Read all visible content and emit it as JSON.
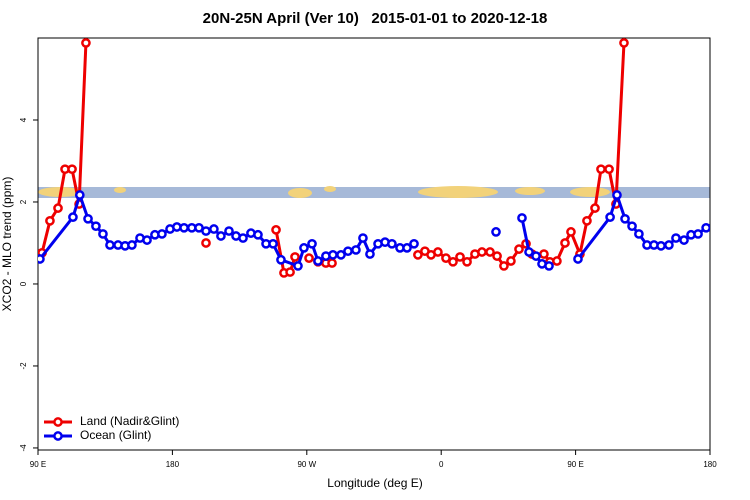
{
  "chart_data": {
    "type": "line",
    "title": "20N-25N April (Ver 10)   2015-01-01 to 2020-12-18",
    "x_label": "Longitude (deg E)",
    "y_label": "XCO2 - MLO trend (ppm)",
    "xlim": [
      90,
      540
    ],
    "xticks": [
      {
        "value": 90,
        "label": "90 E"
      },
      {
        "value": 180,
        "label": "180"
      },
      {
        "value": 270,
        "label": "90 W"
      },
      {
        "value": 360,
        "label": "0"
      },
      {
        "value": 450,
        "label": "90 E"
      },
      {
        "value": 540,
        "label": "180"
      }
    ],
    "ylim": [
      -4.05,
      6.0
    ],
    "yticks": [
      -4,
      -2,
      0,
      2,
      4
    ],
    "legend": "bottom-left",
    "series": [
      {
        "name": "Land (Nadir&Glint)",
        "color": "#ee0000",
        "x": [
          92.7,
          98,
          103.4,
          108.1,
          112.8,
          117.5,
          122.1,
          null,
          202.5,
          null,
          249.4,
          254.7,
          258.8,
          262.1,
          null,
          271.5,
          null,
          277.5,
          282.8,
          286.9,
          null,
          344.4,
          349.1,
          353.2,
          357.8,
          363.2,
          367.9,
          372.6,
          377.3,
          382.6,
          387.3,
          392.7,
          397.4,
          402,
          406.7,
          412.1,
          416.8,
          420.8,
          428.8,
          432.8,
          437.5,
          442.9,
          446.9,
          452.9,
          457.6,
          463,
          467,
          472.4,
          477,
          482.4
        ],
        "values": [
          0.76,
          1.54,
          1.85,
          2.8,
          2.8,
          1.95,
          5.88,
          null,
          1.0,
          null,
          1.32,
          0.27,
          0.29,
          0.66,
          null,
          0.63,
          null,
          0.54,
          0.51,
          0.51,
          null,
          0.71,
          0.8,
          0.71,
          0.78,
          0.63,
          0.54,
          0.66,
          0.54,
          0.73,
          0.78,
          0.78,
          0.68,
          0.44,
          0.56,
          0.85,
          0.98,
          0.73,
          0.73,
          0.54,
          0.56,
          1.0,
          1.27,
          0.73,
          1.54,
          1.85,
          2.8,
          2.8,
          1.95,
          5.88
        ]
      },
      {
        "name": "Ocean (Glint)",
        "color": "#0000ee",
        "x": [
          91.3,
          113.4,
          118,
          123.5,
          128.8,
          133.5,
          138.2,
          143.6,
          148.3,
          152.9,
          158.3,
          163,
          168.3,
          173,
          178.4,
          183,
          187.8,
          193,
          197.8,
          202.5,
          207.8,
          212.5,
          217.9,
          222.6,
          227.3,
          232.6,
          237.3,
          242.7,
          247.4,
          252.7,
          264.1,
          268.1,
          273.5,
          277.5,
          282.8,
          287.5,
          292.9,
          297.6,
          302.9,
          307.6,
          312.3,
          317.7,
          322.4,
          327,
          332.4,
          337.1,
          341.8,
          null,
          396.7,
          null,
          414.1,
          418.8,
          423.5,
          427.5,
          432.2,
          null,
          451.6,
          473.1,
          477.7,
          483.1,
          487.8,
          492.4,
          497.8,
          502.5,
          507.2,
          512.5,
          517.2,
          522.6,
          527.3,
          532,
          537.4
        ],
        "values": [
          0.61,
          1.63,
          2.17,
          1.59,
          1.41,
          1.22,
          0.95,
          0.95,
          0.93,
          0.95,
          1.12,
          1.07,
          1.2,
          1.22,
          1.34,
          1.39,
          1.37,
          1.37,
          1.37,
          1.29,
          1.34,
          1.17,
          1.29,
          1.17,
          1.12,
          1.24,
          1.2,
          0.98,
          0.98,
          0.59,
          0.44,
          0.88,
          0.98,
          0.56,
          0.68,
          0.71,
          0.71,
          0.8,
          0.83,
          1.12,
          0.73,
          0.98,
          1.02,
          0.98,
          0.88,
          0.88,
          0.98,
          null,
          1.27,
          null,
          1.61,
          0.78,
          0.68,
          0.49,
          0.44,
          null,
          0.61,
          1.63,
          2.17,
          1.59,
          1.41,
          1.22,
          0.95,
          0.95,
          0.93,
          0.95,
          1.12,
          1.07,
          1.2,
          1.22,
          1.37
        ]
      }
    ]
  }
}
